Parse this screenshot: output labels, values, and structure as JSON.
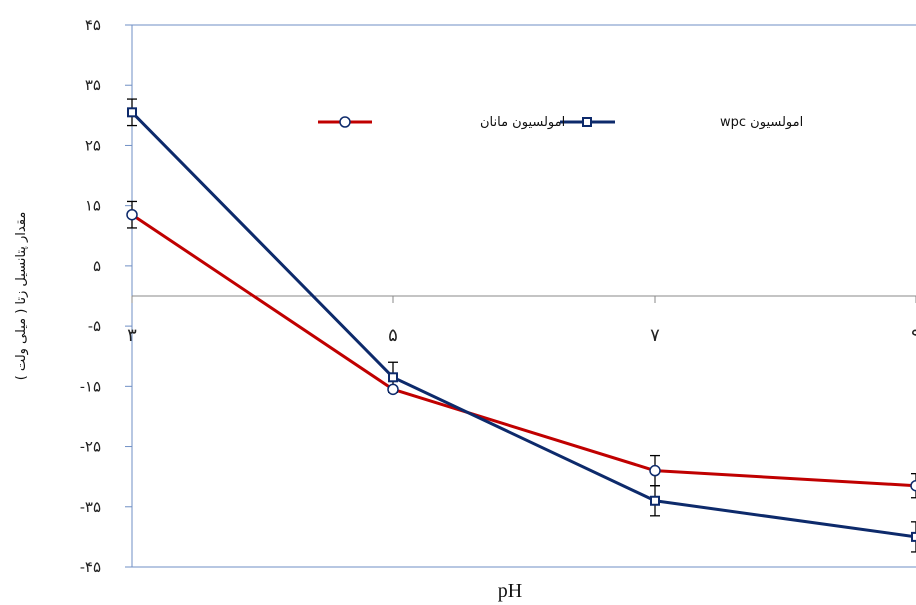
{
  "chart_data": {
    "type": "line",
    "xlabel": "pH",
    "ylabel": "مقدار پتانسیل زتا ( میلی ولت )",
    "x": [
      3,
      5,
      7,
      9
    ],
    "x_tick_labels": [
      "۳",
      "۵",
      "۷",
      "۹"
    ],
    "ylim": [
      -45,
      45
    ],
    "y_ticks": [
      45,
      35,
      25,
      15,
      5,
      -5,
      -15,
      -25,
      -35,
      -45
    ],
    "y_tick_labels": [
      "۴۵",
      "۳۵",
      "۲۵",
      "۱۵",
      "۵",
      "-۵",
      "-۱۵",
      "-۲۵",
      "-۳۵",
      "-۴۵"
    ],
    "series": [
      {
        "name": "امولسیون wpc",
        "color": "#0d2a6b",
        "marker": "square",
        "values": [
          30.5,
          -13.5,
          -34,
          -40
        ],
        "errors": [
          2.2,
          2.5,
          2.5,
          2.5
        ]
      },
      {
        "name": "امولسیون مانان",
        "color": "#c00000",
        "marker": "circle",
        "values": [
          13.5,
          -15.5,
          -29,
          -31.5
        ],
        "errors": [
          2.2,
          0,
          2.5,
          2
        ]
      }
    ],
    "legend_position": "top-right",
    "grid": false
  }
}
